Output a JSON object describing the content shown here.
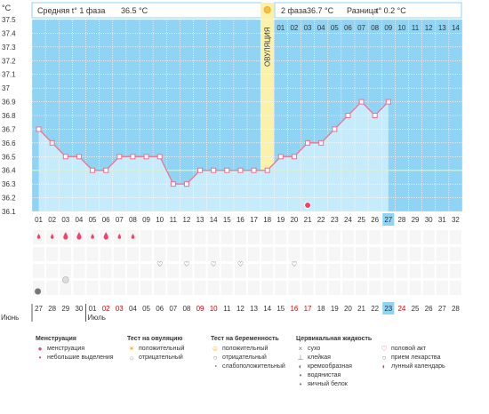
{
  "header": {
    "phase1_label": "Средняя t° 1 фаза",
    "phase1_value": "36.5 °C",
    "phase2_label": "2 фаза",
    "phase2_value": "36.7 °C",
    "diff_label": "Разница",
    "diff_value": "t° 0.2 °C",
    "unit": "°C"
  },
  "ovulation": {
    "label": "ОВУЛЯЦИЯ",
    "cycle_day": 18,
    "icon": "sun-icon"
  },
  "cover_line": 36.4,
  "today_cycle_day": 27,
  "cycle_days": [
    "01",
    "02",
    "03",
    "04",
    "05",
    "06",
    "07",
    "08",
    "09",
    "10",
    "11",
    "12",
    "13",
    "14",
    "15",
    "16",
    "17",
    "18",
    "19",
    "20",
    "21",
    "22",
    "23",
    "24",
    "25",
    "26",
    "27",
    "28",
    "29",
    "30",
    "31",
    "32"
  ],
  "phase2_day_numbers": [
    "01",
    "02",
    "03",
    "04",
    "05",
    "06",
    "07",
    "08",
    "09",
    "10",
    "11",
    "12",
    "13",
    "14"
  ],
  "calendar": {
    "dates": [
      "27",
      "28",
      "29",
      "30",
      "01",
      "02",
      "03",
      "04",
      "05",
      "06",
      "07",
      "08",
      "09",
      "10",
      "11",
      "12",
      "13",
      "14",
      "15",
      "16",
      "17",
      "18",
      "19",
      "20",
      "21",
      "22",
      "23",
      "24",
      "25",
      "26",
      "27",
      "28"
    ],
    "red_dates": [
      "02",
      "03",
      "09",
      "10",
      "16",
      "17",
      "24"
    ],
    "today_date": "23",
    "months": [
      {
        "label": "Июнь",
        "start_index": 0
      },
      {
        "label": "Июль",
        "start_index": 4
      }
    ]
  },
  "marks": {
    "menstruation_days": [
      1,
      2,
      3,
      4,
      5,
      6,
      7,
      8
    ],
    "menstruation_big_days": [
      3,
      4,
      6
    ],
    "intercourse_days": [
      10,
      12,
      14,
      16,
      20
    ],
    "pill_days": [
      3
    ],
    "moon_days": [
      21
    ],
    "discharge_days": [
      1
    ]
  },
  "chart_data": {
    "type": "line",
    "x_label": "",
    "y_label": "°C",
    "ylim": [
      36.1,
      37.5
    ],
    "y_ticks": [
      "36.1",
      "36.2",
      "36.3",
      "36.4",
      "36.5",
      "36.6",
      "36.7",
      "36.8",
      "36.9",
      "37",
      "37.1",
      "37.2",
      "37.3",
      "37.4",
      "37.5"
    ],
    "x": [
      1,
      2,
      3,
      4,
      5,
      6,
      7,
      8,
      9,
      10,
      11,
      12,
      13,
      14,
      15,
      16,
      17,
      18,
      19,
      20,
      21,
      22,
      23,
      24,
      25,
      26,
      27
    ],
    "values": [
      36.7,
      36.6,
      36.5,
      36.5,
      36.4,
      36.4,
      36.5,
      36.5,
      36.5,
      36.5,
      36.3,
      36.3,
      36.4,
      36.4,
      36.4,
      36.4,
      36.4,
      36.4,
      36.5,
      36.5,
      36.6,
      36.6,
      36.7,
      36.8,
      36.9,
      36.8,
      36.9
    ],
    "grid": true
  },
  "legend": {
    "columns": [
      {
        "title": "Менструация",
        "items": [
          {
            "icon": "drop-big-icon",
            "label": "менструация"
          },
          {
            "icon": "drop-small-icon",
            "label": "небольшие выделения"
          }
        ]
      },
      {
        "title": "Тест на овуляцию",
        "items": [
          {
            "icon": "sun-positive-icon",
            "label": "положительный"
          },
          {
            "icon": "sun-negative-icon",
            "label": "отрицательный"
          }
        ]
      },
      {
        "title": "Тест на беременность",
        "items": [
          {
            "icon": "smile-positive-icon",
            "label": "положительный"
          },
          {
            "icon": "smile-negative-icon",
            "label": "отрицательный"
          },
          {
            "icon": "smile-weak-icon",
            "label": "слабоположительный"
          }
        ]
      },
      {
        "title": "Цервикальная жидкость",
        "items": [
          {
            "icon": "dry-icon",
            "label": "сухо"
          },
          {
            "icon": "sticky-icon",
            "label": "клейкая"
          },
          {
            "icon": "creamy-icon",
            "label": "кремообразная"
          },
          {
            "icon": "watery-icon",
            "label": "водянистая"
          },
          {
            "icon": "eggwhite-icon",
            "label": "яичный белок"
          }
        ]
      },
      {
        "title": "",
        "items": [
          {
            "icon": "heart-icon",
            "label": "половой акт"
          },
          {
            "icon": "pill-icon",
            "label": "прием лекарства"
          },
          {
            "icon": "moon-icon",
            "label": "лунный календарь"
          }
        ]
      }
    ]
  },
  "colors": {
    "bg": "#8fd3f5",
    "fill": "#c6ebfb",
    "line": "#f26d8c",
    "ovulation": "#fbf1a9",
    "cover": "#e6f299",
    "today": "#8fd3f5",
    "accent": "#f0436c"
  }
}
